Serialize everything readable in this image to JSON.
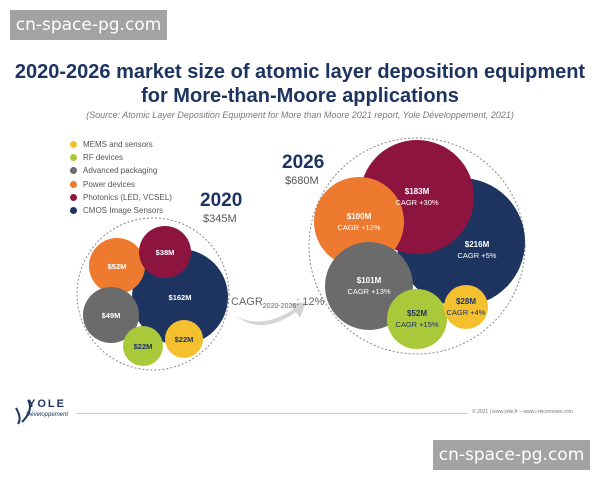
{
  "watermark": "cn-space-pg.com",
  "chart_data": {
    "type": "bubble",
    "title": "2020-2026 market size of atomic layer deposition equipment for More-than-Moore applications",
    "subtitle": "(Source: Atomic Layer Deposition Equipment for More than Moore 2021 report, Yole Développement, 2021)",
    "legend": [
      {
        "name": "MEMS and sensors",
        "color": "#f5c02e"
      },
      {
        "name": "RF devices",
        "color": "#a9c83a"
      },
      {
        "name": "Advanced packaging",
        "color": "#6b6b6b"
      },
      {
        "name": "Power devices",
        "color": "#ee7a30"
      },
      {
        "name": "Photonics (LED, VCSEL)",
        "color": "#8e1440"
      },
      {
        "name": "CMOS Image Sensors",
        "color": "#1d3461"
      }
    ],
    "years": [
      {
        "year": "2020",
        "total": "$345M",
        "values": [
          {
            "segment": "MEMS and sensors",
            "value": 22,
            "label": "$22M"
          },
          {
            "segment": "RF devices",
            "value": 22,
            "label": "$22M"
          },
          {
            "segment": "Advanced packaging",
            "value": 49,
            "label": "$49M"
          },
          {
            "segment": "Power devices",
            "value": 52,
            "label": "$52M"
          },
          {
            "segment": "Photonics (LED, VCSEL)",
            "value": 38,
            "label": "$38M"
          },
          {
            "segment": "CMOS Image Sensors",
            "value": 162,
            "label": "$162M"
          }
        ]
      },
      {
        "year": "2026",
        "total": "$680M",
        "values": [
          {
            "segment": "MEMS and sensors",
            "value": 28,
            "label": "$28M",
            "cagr": "CAGR +4%"
          },
          {
            "segment": "RF devices",
            "value": 52,
            "label": "$52M",
            "cagr": "CAGR +15%"
          },
          {
            "segment": "Advanced packaging",
            "value": 101,
            "label": "$101M",
            "cagr": "CAGR +13%"
          },
          {
            "segment": "Power devices",
            "value": 100,
            "label": "$100M",
            "cagr": "CAGR +12%"
          },
          {
            "segment": "Photonics (LED, VCSEL)",
            "value": 183,
            "label": "$183M",
            "cagr": "CAGR +30%"
          },
          {
            "segment": "CMOS Image Sensors",
            "value": 216,
            "label": "$216M",
            "cagr": "CAGR +5%"
          }
        ]
      }
    ],
    "overall_cagr": {
      "label": "CAGR",
      "period": "2020-2026",
      "value": ": 12%"
    }
  },
  "footer": {
    "logo_name": "YOLE",
    "logo_sub": "Développement",
    "copyright": "© 2021 | www.yole.fr – www.i-micronews.com"
  }
}
